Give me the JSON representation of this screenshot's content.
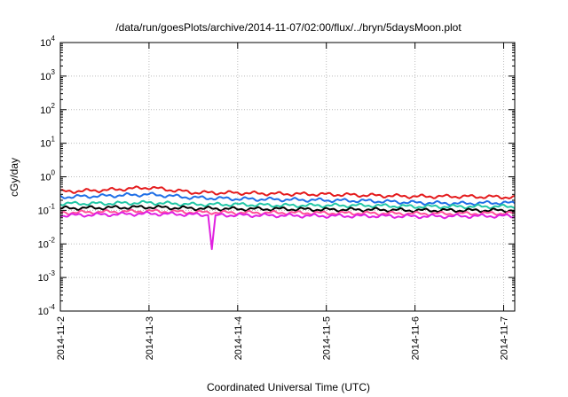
{
  "chart_data": {
    "type": "line",
    "title": "/data/run/goesPlots/archive/2014-11-07/02:00/flux/../bryn/5daysMoon.plot",
    "xlabel": "Coordinated Universal Time (UTC)",
    "ylabel": "cGy/day",
    "y_scale": "log",
    "ylim": [
      0.0001,
      10000
    ],
    "xlim": [
      "2014-11-02",
      "2014-11-07 03:00"
    ],
    "grid": true,
    "x_ticks": [
      "2014-11-2",
      "2014-11-3",
      "2014-11-4",
      "2014-11-5",
      "2014-11-6",
      "2014-11-7"
    ],
    "y_ticks": [
      {
        "base": "10",
        "exp": "-4"
      },
      {
        "base": "10",
        "exp": "-3"
      },
      {
        "base": "10",
        "exp": "-2"
      },
      {
        "base": "10",
        "exp": "-1"
      },
      {
        "base": "10",
        "exp": "0"
      },
      {
        "base": "10",
        "exp": "1"
      },
      {
        "base": "10",
        "exp": "2"
      },
      {
        "base": "10",
        "exp": "3"
      },
      {
        "base": "10",
        "exp": "4"
      }
    ],
    "series": [
      {
        "color": "#e41a1c",
        "x": [
          "2014-11-02 00:00",
          "2014-11-02 12:00",
          "2014-11-03 00:00",
          "2014-11-03 12:00",
          "2014-11-04 00:00",
          "2014-11-04 12:00",
          "2014-11-05 00:00",
          "2014-11-05 12:00",
          "2014-11-06 00:00",
          "2014-11-06 12:00",
          "2014-11-07 00:00",
          "2014-11-07 03:00"
        ],
        "values": [
          0.36,
          0.4,
          0.48,
          0.34,
          0.33,
          0.31,
          0.3,
          0.28,
          0.26,
          0.26,
          0.25,
          0.24
        ]
      },
      {
        "color": "#1f6fe6",
        "x": [
          "2014-11-02 00:00",
          "2014-11-02 12:00",
          "2014-11-03 00:00",
          "2014-11-03 12:00",
          "2014-11-04 00:00",
          "2014-11-04 12:00",
          "2014-11-05 00:00",
          "2014-11-05 12:00",
          "2014-11-06 00:00",
          "2014-11-06 12:00",
          "2014-11-07 00:00",
          "2014-11-07 03:00"
        ],
        "values": [
          0.25,
          0.27,
          0.3,
          0.24,
          0.22,
          0.21,
          0.2,
          0.19,
          0.17,
          0.16,
          0.17,
          0.16
        ]
      },
      {
        "color": "#22c7a6",
        "x": [
          "2014-11-02 00:00",
          "2014-11-02 12:00",
          "2014-11-03 00:00",
          "2014-11-03 12:00",
          "2014-11-04 00:00",
          "2014-11-04 12:00",
          "2014-11-05 00:00",
          "2014-11-05 12:00",
          "2014-11-06 00:00",
          "2014-11-06 12:00",
          "2014-11-07 00:00",
          "2014-11-07 03:00"
        ],
        "values": [
          0.16,
          0.16,
          0.17,
          0.15,
          0.15,
          0.14,
          0.14,
          0.14,
          0.13,
          0.13,
          0.13,
          0.13
        ]
      },
      {
        "color": "#000000",
        "x": [
          "2014-11-02 00:00",
          "2014-11-02 12:00",
          "2014-11-03 00:00",
          "2014-11-03 12:00",
          "2014-11-04 00:00",
          "2014-11-04 12:00",
          "2014-11-05 00:00",
          "2014-11-05 12:00",
          "2014-11-06 00:00",
          "2014-11-06 12:00",
          "2014-11-07 00:00",
          "2014-11-07 03:00"
        ],
        "values": [
          0.115,
          0.12,
          0.125,
          0.115,
          0.11,
          0.11,
          0.105,
          0.105,
          0.1,
          0.1,
          0.1,
          0.1
        ]
      },
      {
        "color": "#ff4f9a",
        "x": [
          "2014-11-02 00:00",
          "2014-11-02 12:00",
          "2014-11-03 00:00",
          "2014-11-03 12:00",
          "2014-11-04 00:00",
          "2014-11-04 12:00",
          "2014-11-05 00:00",
          "2014-11-05 12:00",
          "2014-11-06 00:00",
          "2014-11-06 12:00",
          "2014-11-07 00:00",
          "2014-11-07 03:00"
        ],
        "values": [
          0.085,
          0.09,
          0.095,
          0.088,
          0.085,
          0.085,
          0.083,
          0.082,
          0.08,
          0.08,
          0.082,
          0.08
        ]
      },
      {
        "color": "#e020e0",
        "x": [
          "2014-11-02 00:00",
          "2014-11-02 12:00",
          "2014-11-03 00:00",
          "2014-11-03 12:00",
          "2014-11-03 16:00",
          "2014-11-03 17:00",
          "2014-11-03 18:00",
          "2014-11-04 00:00",
          "2014-11-04 12:00",
          "2014-11-05 00:00",
          "2014-11-05 12:00",
          "2014-11-06 00:00",
          "2014-11-06 12:00",
          "2014-11-07 00:00",
          "2014-11-07 03:00"
        ],
        "values": [
          0.07,
          0.075,
          0.08,
          0.075,
          0.072,
          0.007,
          0.072,
          0.072,
          0.07,
          0.068,
          0.068,
          0.066,
          0.067,
          0.068,
          0.066
        ]
      }
    ]
  }
}
